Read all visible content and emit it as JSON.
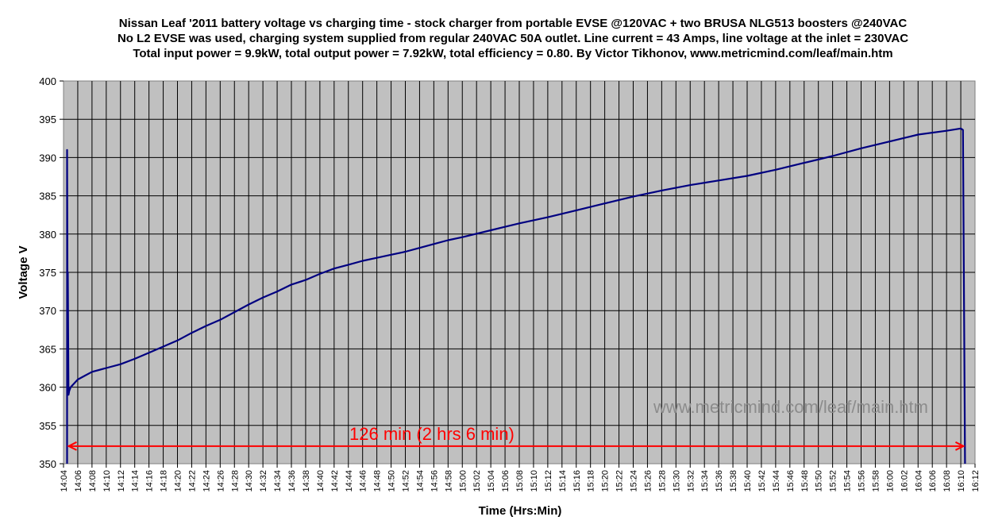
{
  "chart_data": {
    "type": "line",
    "title_lines": [
      "Nissan Leaf '2011 battery voltage vs charging time - stock charger from portable EVSE @120VAC + two BRUSA NLG513 boosters @240VAC",
      "No L2 EVSE was used, charging system supplied from regular 240VAC 50A outlet. Line current = 43 Amps, line voltage at the inlet = 230VAC",
      "Total input power = 9.9kW, total output power = 7.92kW, total efficiency = 0.80.    By Victor Tikhonov, www.metricmind.com/leaf/main.htm"
    ],
    "xlabel": "Time (Hrs:Min)",
    "ylabel": "Voltage V",
    "x_ticks": [
      "14:04",
      "14:06",
      "14:08",
      "14:10",
      "14:12",
      "14:14",
      "14:16",
      "14:18",
      "14:20",
      "14:22",
      "14:24",
      "14:26",
      "14:28",
      "14:30",
      "14:32",
      "14:34",
      "14:36",
      "14:38",
      "14:40",
      "14:42",
      "14:44",
      "14:46",
      "14:48",
      "14:50",
      "14:52",
      "14:54",
      "14:56",
      "14:58",
      "15:00",
      "15:02",
      "15:04",
      "15:06",
      "15:08",
      "15:10",
      "15:12",
      "15:14",
      "15:16",
      "15:18",
      "15:20",
      "15:22",
      "15:24",
      "15:26",
      "15:28",
      "15:30",
      "15:32",
      "15:34",
      "15:36",
      "15:38",
      "15:40",
      "15:42",
      "15:44",
      "15:46",
      "15:48",
      "15:50",
      "15:52",
      "15:54",
      "15:56",
      "15:58",
      "16:00",
      "16:02",
      "16:04",
      "16:06",
      "16:08",
      "16:10",
      "16:12"
    ],
    "y_ticks": [
      350,
      355,
      360,
      365,
      370,
      375,
      380,
      385,
      390,
      395,
      400
    ],
    "ylim": [
      350,
      400
    ],
    "grid": true,
    "plot_background": "#c0c0c0",
    "series": [
      {
        "color": "#000080",
        "x": [
          "14:04.5",
          "14:04.5",
          "14:04.6",
          "14:04.6",
          "14:04.7",
          "14:04.8",
          "14:05",
          "14:05.5",
          "14:06",
          "14:07",
          "14:08",
          "14:10",
          "14:12",
          "14:14",
          "14:16",
          "14:18",
          "14:20",
          "14:22",
          "14:24",
          "14:26",
          "14:28",
          "14:30",
          "14:32",
          "14:34",
          "14:36",
          "14:38",
          "14:40",
          "14:42",
          "14:44",
          "14:46",
          "14:48",
          "14:50",
          "14:52",
          "14:54",
          "14:56",
          "14:58",
          "15:00",
          "15:04",
          "15:08",
          "15:12",
          "15:16",
          "15:20",
          "15:24",
          "15:28",
          "15:32",
          "15:36",
          "15:40",
          "15:44",
          "15:48",
          "15:52",
          "15:56",
          "16:00",
          "16:04",
          "16:08",
          "16:10",
          "16:10.3",
          "16:10.6"
        ],
        "y": [
          350,
          391,
          359,
          375,
          359,
          359.5,
          360,
          360.5,
          361,
          361.5,
          362,
          362.5,
          363,
          363.7,
          364.5,
          365.3,
          366.1,
          367.1,
          368,
          368.8,
          369.8,
          370.8,
          371.7,
          372.5,
          373.4,
          374,
          374.8,
          375.5,
          376,
          376.5,
          376.9,
          377.3,
          377.7,
          378.2,
          378.7,
          379.2,
          379.6,
          380.5,
          381.4,
          382.2,
          383.1,
          384,
          384.9,
          385.7,
          386.4,
          387,
          387.6,
          388.4,
          389.3,
          390.2,
          391.2,
          392.1,
          393,
          393.5,
          393.8,
          393.6,
          350
        ]
      }
    ],
    "annotations": {
      "watermark": "www.metricmind.com/leaf/main.htm",
      "duration_label": "126 min (2 hrs 6 min)",
      "duration_arrow_from": "14:04.5",
      "duration_arrow_to": "16:10.6",
      "duration_arrow_y": 352.3,
      "arrow_color": "#ff0000"
    }
  }
}
